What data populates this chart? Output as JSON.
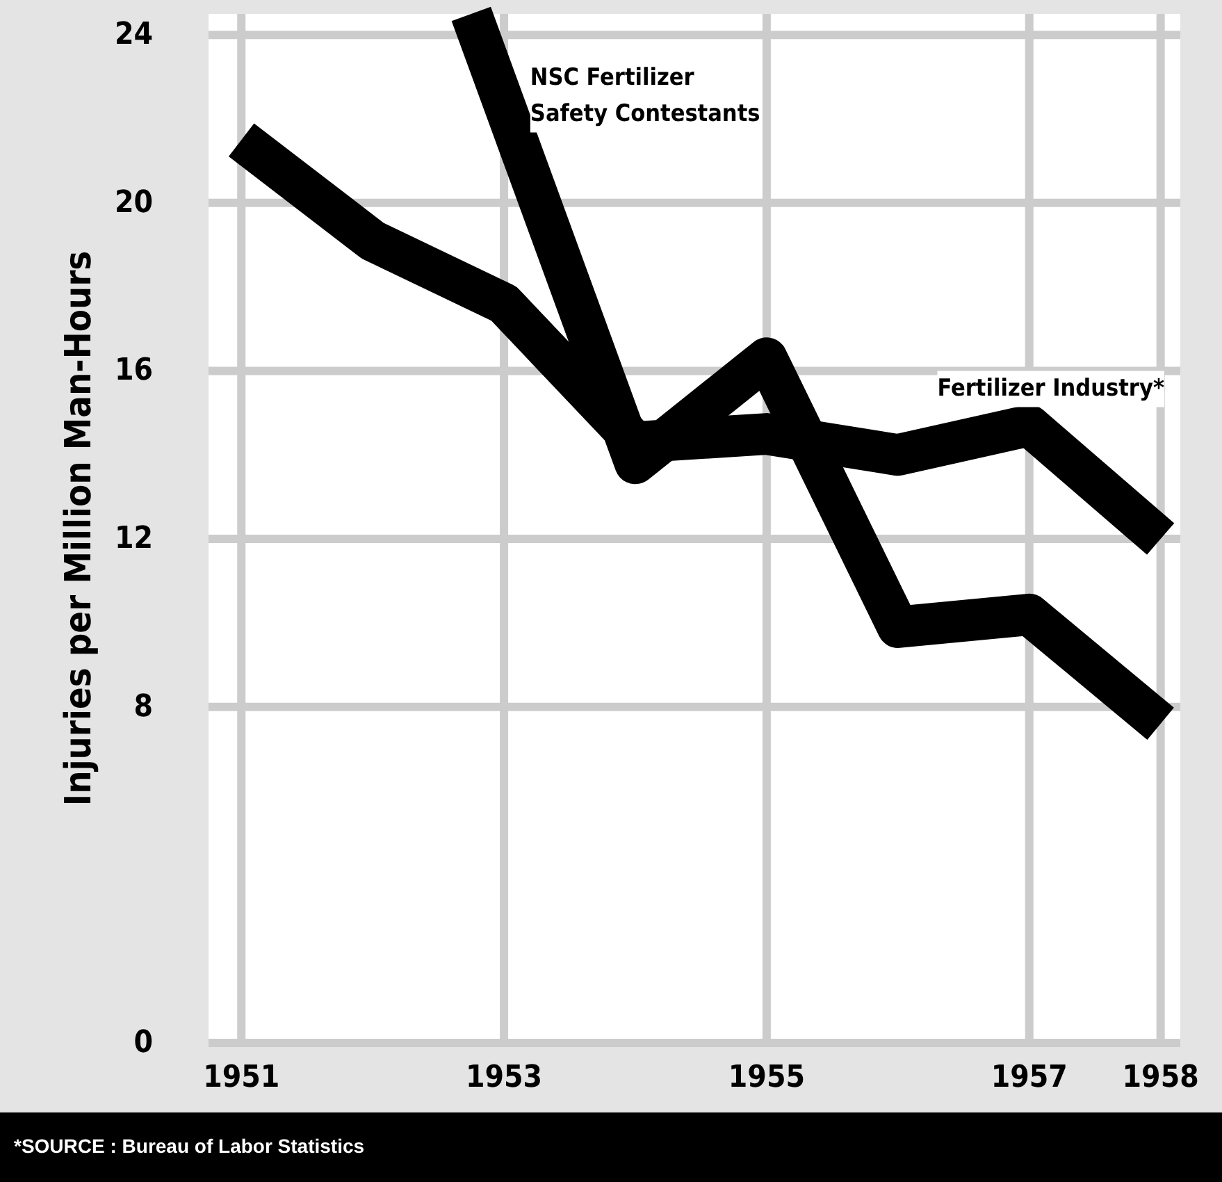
{
  "chart_data": {
    "type": "line",
    "ylabel": "Injuries per Million Man-Hours",
    "x": [
      1951,
      1952,
      1953,
      1954,
      1955,
      1956,
      1957,
      1958
    ],
    "xlim": [
      1950.75,
      1958.15
    ],
    "xticks": [
      1951,
      1953,
      1955,
      1957,
      1958
    ],
    "ylim": [
      0,
      24.5
    ],
    "yticks": [
      0,
      8,
      12,
      16,
      20,
      24
    ],
    "series": [
      {
        "name": "NSC Fertilizer\nSafety Contestants",
        "color": "#000000",
        "x": [
          1952.75,
          1954,
          1955,
          1956,
          1957,
          1958
        ],
        "values": [
          24.5,
          13.8,
          16.3,
          9.9,
          10.2,
          7.6
        ]
      },
      {
        "name": "Fertilizer Industry*",
        "color": "#000000",
        "values": [
          21.5,
          19.1,
          17.6,
          14.3,
          14.5,
          14.0,
          14.7,
          12.0
        ]
      }
    ],
    "grid": true,
    "legend": false,
    "marker": "none",
    "line_style": "solid",
    "annotations": [
      "*SOURCE : Bureau of Labor Statistics"
    ]
  }
}
